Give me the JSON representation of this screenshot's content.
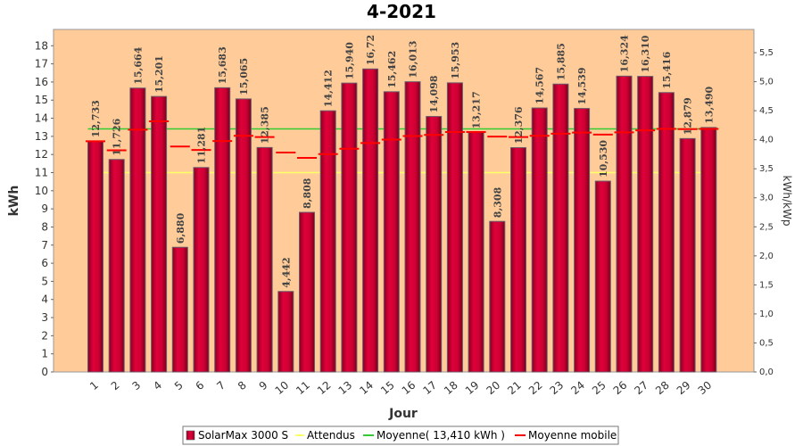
{
  "chart_data": {
    "type": "bar",
    "title": "4-2021",
    "xlabel": "Jour",
    "ylabel": "kWh",
    "ylabel_right": "kWh/kWp",
    "ylim": [
      0,
      18.9
    ],
    "ylim_right": [
      0,
      5.9
    ],
    "y_ticks": [
      "0",
      "1",
      "2",
      "3",
      "4",
      "5",
      "6",
      "7",
      "8",
      "9",
      "10",
      "11",
      "12",
      "13",
      "14",
      "15",
      "16",
      "17",
      "18"
    ],
    "y_right_ticks": [
      "0,0",
      "0,5",
      "1,0",
      "1,5",
      "2,0",
      "2,5",
      "3,0",
      "3,5",
      "4,0",
      "4,5",
      "5,0",
      "5,5"
    ],
    "categories": [
      "1",
      "2",
      "3",
      "4",
      "5",
      "6",
      "7",
      "8",
      "9",
      "10",
      "11",
      "12",
      "13",
      "14",
      "15",
      "16",
      "17",
      "18",
      "19",
      "20",
      "21",
      "22",
      "23",
      "24",
      "25",
      "26",
      "27",
      "28",
      "29",
      "30"
    ],
    "series": [
      {
        "name": "SolarMax 3000 S",
        "type": "bar",
        "color": "#cc0033",
        "values": [
          12.733,
          11.726,
          15.664,
          15.201,
          6.88,
          11.281,
          15.683,
          15.065,
          12.385,
          4.442,
          8.808,
          14.412,
          15.94,
          16.72,
          15.462,
          16.013,
          14.098,
          15.953,
          13.217,
          8.308,
          12.376,
          14.567,
          15.885,
          14.539,
          10.53,
          16.324,
          16.31,
          15.416,
          12.879,
          13.49
        ],
        "labels": [
          "12,733",
          "11,726",
          "15,664",
          "15,201",
          "6,880",
          "11,281",
          "15,683",
          "15,065",
          "12,385",
          "4,442",
          "8,808",
          "14,412",
          "15,940",
          "16,72",
          "15,462",
          "16,013",
          "14,098",
          "15,953",
          "13,217",
          "8,308",
          "12,376",
          "14,567",
          "15,885",
          "14,539",
          "10,530",
          "16,324",
          "16,310",
          "15,416",
          "12,879",
          "13,490"
        ]
      },
      {
        "name": "Attendus",
        "type": "line",
        "color": "#ffff66",
        "value": 11.0
      },
      {
        "name": "Moyenne( 13,410 kWh )",
        "type": "line",
        "color": "#33cc33",
        "value": 13.41
      },
      {
        "name": "Moyenne mobile",
        "type": "step",
        "color": "#ff0000",
        "values": [
          12.73,
          12.23,
          13.37,
          13.83,
          12.44,
          12.25,
          12.74,
          13.03,
          12.96,
          12.11,
          11.81,
          12.02,
          12.32,
          12.63,
          12.82,
          13.02,
          13.08,
          13.24,
          13.24,
          12.99,
          12.96,
          13.03,
          13.15,
          13.21,
          13.1,
          13.22,
          13.33,
          13.41,
          13.4,
          13.41
        ]
      }
    ],
    "grid": false,
    "legend": "bottom",
    "colors": {
      "plot_bg": "#ffcc99",
      "bar": "#cc0033"
    }
  }
}
